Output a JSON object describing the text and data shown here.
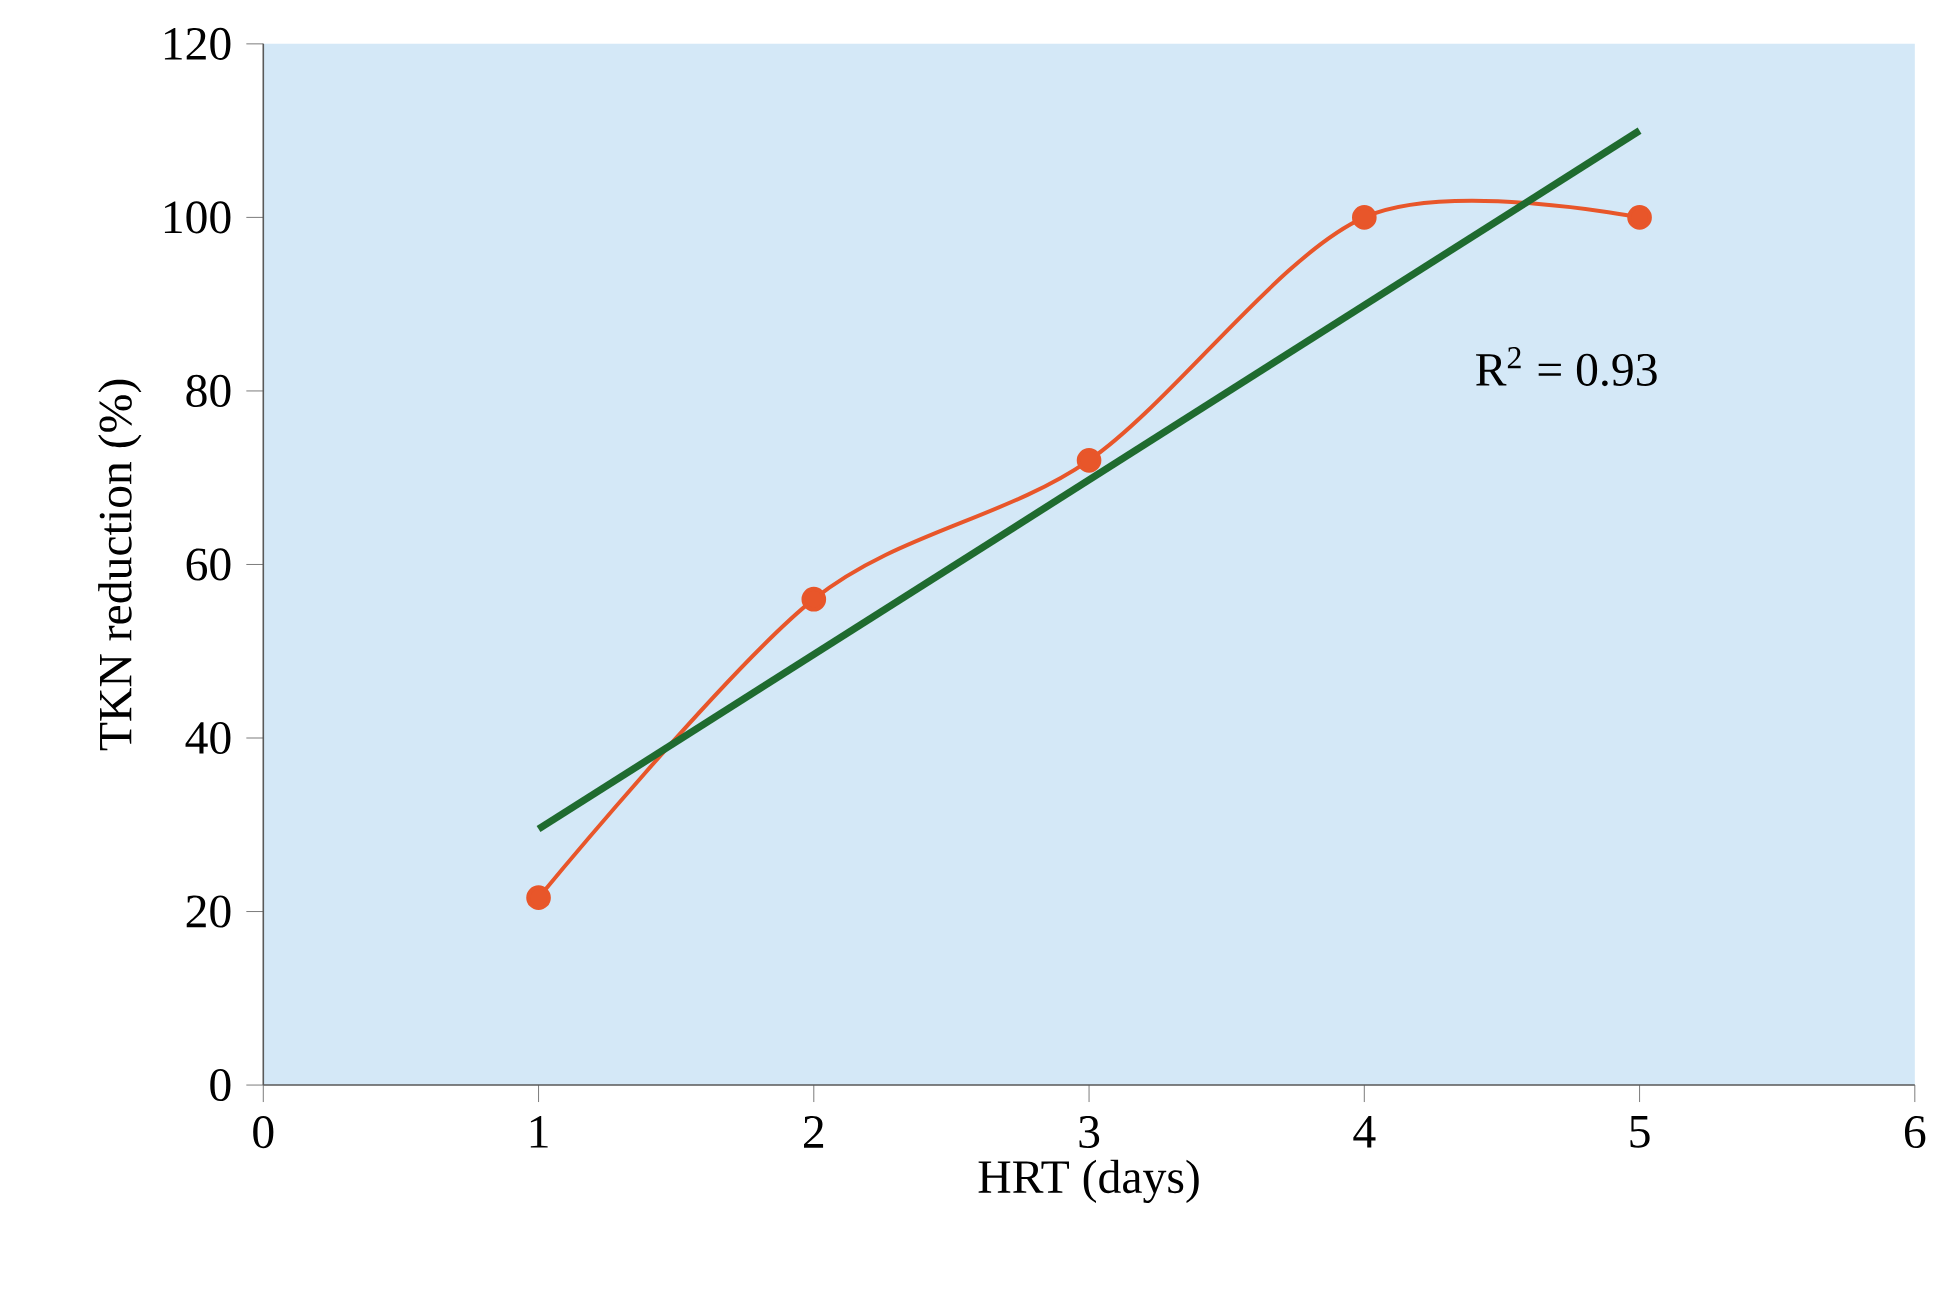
{
  "chart_data": {
    "type": "line",
    "xlabel": "HRT (days)",
    "ylabel": "TKN reduction (%)",
    "xlim": [
      0,
      6
    ],
    "xticks": [
      0,
      1,
      2,
      3,
      4,
      5,
      6
    ],
    "ylim": [
      0,
      120
    ],
    "yticks": [
      0,
      20,
      40,
      60,
      80,
      100,
      120
    ],
    "series": [
      {
        "color": "#e8562a",
        "x": [
          1,
          2,
          3,
          4,
          5
        ],
        "values": [
          21.6,
          56,
          72,
          100,
          100
        ],
        "marker": "circle"
      },
      {
        "color": "#1f6b2f",
        "x": [
          1,
          5
        ],
        "values": [
          29.5,
          110
        ],
        "marker": "none"
      }
    ],
    "annotations": [
      "R$^{2}$ = 0.93"
    ]
  }
}
